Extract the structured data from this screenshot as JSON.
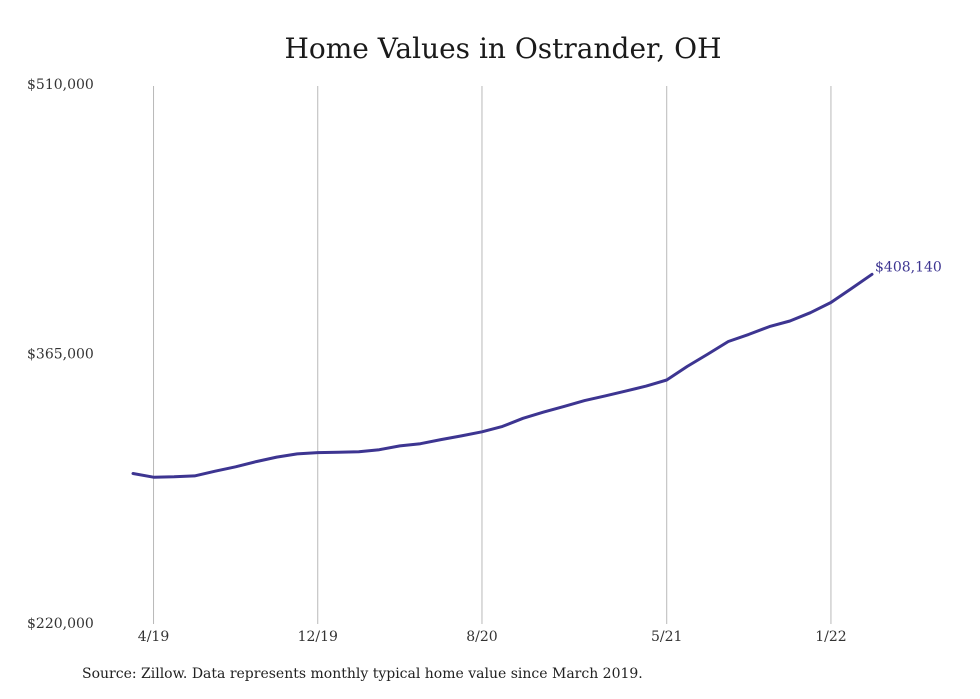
{
  "chart_data": {
    "type": "line",
    "title": "Home Values in Ostrander, OH",
    "xlabel": "",
    "ylabel": "",
    "ylim": [
      220000,
      510000
    ],
    "y_tick_labels": [
      "$510,000",
      "$365,000",
      "$220,000"
    ],
    "y_ticks": [
      510000,
      365000,
      220000
    ],
    "x_tick_labels": [
      "4/19",
      "12/19",
      "8/20",
      "5/21",
      "1/22"
    ],
    "x_ticks": [
      "2019-04",
      "2019-12",
      "2020-08",
      "2021-05",
      "2022-01"
    ],
    "x_range": [
      "2019-03",
      "2022-03"
    ],
    "grid": "vertical",
    "line_color": "#3d3591",
    "end_label": "$408,140",
    "series": [
      {
        "x": [
          "2019-03",
          "2019-04",
          "2019-05",
          "2019-06",
          "2019-07",
          "2019-08",
          "2019-09",
          "2019-10",
          "2019-11",
          "2019-12",
          "2020-01",
          "2020-02",
          "2020-03",
          "2020-04",
          "2020-05",
          "2020-06",
          "2020-07",
          "2020-08",
          "2020-09",
          "2020-10",
          "2020-11",
          "2020-12",
          "2021-01",
          "2021-02",
          "2021-03",
          "2021-04",
          "2021-05",
          "2021-06",
          "2021-07",
          "2021-08",
          "2021-09",
          "2021-10",
          "2021-11",
          "2021-12",
          "2022-01",
          "2022-02",
          "2022-03"
        ],
        "y": [
          301000,
          299000,
          299200,
          299700,
          302200,
          304600,
          307400,
          309800,
          311500,
          312200,
          312400,
          312700,
          313800,
          315800,
          317000,
          319200,
          321200,
          323400,
          326300,
          330700,
          334000,
          337100,
          340200,
          342700,
          345300,
          348000,
          351300,
          358600,
          365200,
          372000,
          375800,
          380000,
          383000,
          387500,
          393000,
          400500,
          408140
        ]
      }
    ]
  },
  "footer": {
    "source": "Source: Zillow. Data represents monthly typical home value since March 2019."
  }
}
